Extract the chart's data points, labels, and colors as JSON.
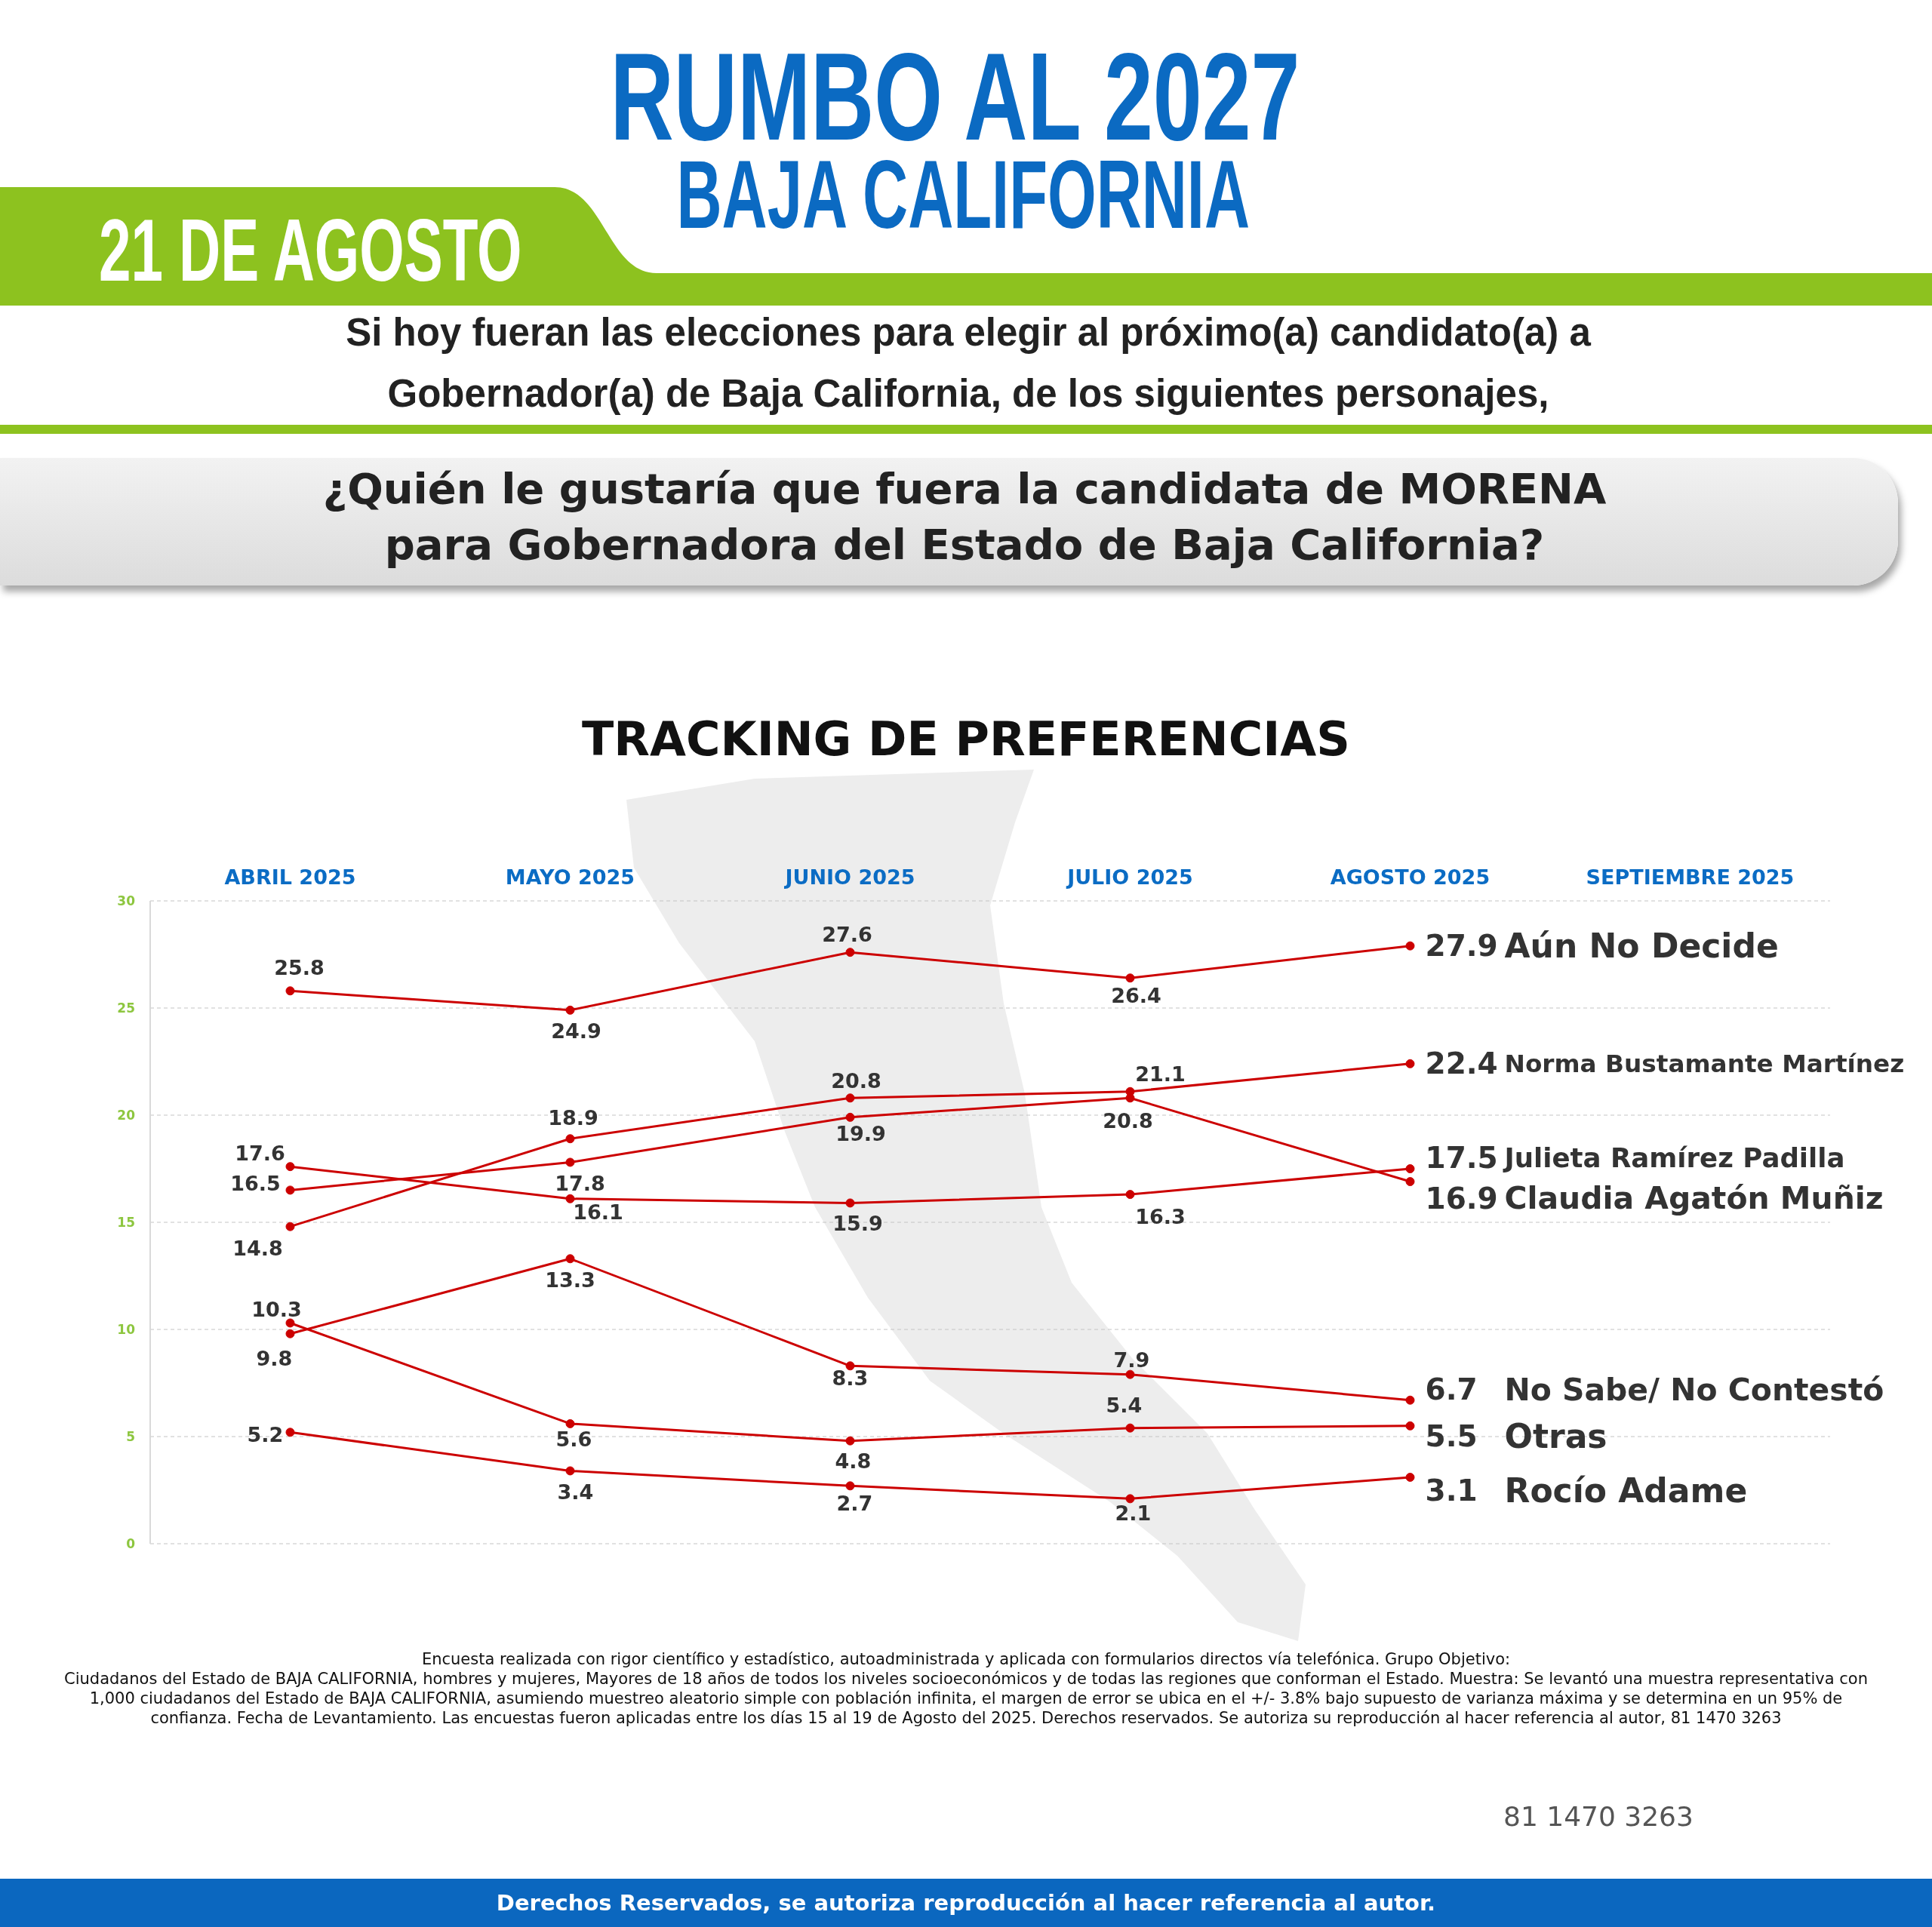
{
  "chart_data": {
    "type": "line",
    "title": "RUMBO AL 2027",
    "subtitle": "BAJA CALIFORNIA",
    "annotations": [
      "21 DE AGOSTO",
      "Si hoy fueran las elecciones para elegir al próximo(a) candidato(a) a Gobernador(a) de Baja California, de los siguientes personajes,",
      "¿Quién le gustaría que fuera la candidata de MORENA para Gobernadora del Estado de Baja California?",
      "TRACKING DE PREFERENCIAS",
      "Encuesta realizada con rigor científico y estadístico, autoadministrada y aplicada con formularios directos vía telefónica. Grupo Objetivo:",
      "Ciudadanos del Estado de BAJA CALIFORNIA, hombres y mujeres, Mayores de 18 años de todos los niveles socioeconómicos y de todas las regiones que conforman el Estado. Muestra: Se levantó una muestra representativa con 1,000 ciudadanos del Estado de BAJA CALIFORNIA, asumiendo muestreo aleatorio simple con población infinita, el margen de error se ubica en el +/- 3.8% bajo supuesto de varianza máxima y se determina en un 95% de confianza. Fecha de Levantamiento. Las encuestas fueron aplicadas entre los días 15 al 19 de Agosto del 2025. Derechos reservados. Se autoriza su reproducción al hacer referencia al autor, 81 1470 3263",
      "81 1470 3263",
      "Derechos Reservados, se autoriza reproducción al hacer referencia al autor."
    ],
    "categories": [
      "ABRIL 2025",
      "MAYO 2025",
      "JUNIO 2025",
      "JULIO 2025",
      "AGOSTO 2025",
      "SEPTIEMBRE 2025"
    ],
    "series": [
      {
        "name": "Aún No Decide",
        "color": "#cc0000",
        "values": [
          25.8,
          24.9,
          27.6,
          26.4,
          27.9,
          null
        ]
      },
      {
        "name": "Norma Bustamante Martínez",
        "color": "#cc0000",
        "values": [
          14.8,
          18.9,
          20.8,
          21.1,
          22.4,
          null
        ]
      },
      {
        "name": "Julieta Ramírez Padilla",
        "color": "#cc0000",
        "values": [
          17.6,
          16.1,
          15.9,
          16.3,
          17.5,
          null
        ]
      },
      {
        "name": "Claudia Agatón Muñiz",
        "color": "#cc0000",
        "values": [
          16.5,
          17.8,
          19.9,
          20.8,
          16.9,
          null
        ]
      },
      {
        "name": "No Sabe/ No Contestó",
        "color": "#cc0000",
        "values": [
          9.8,
          13.3,
          8.3,
          7.9,
          6.7,
          null
        ]
      },
      {
        "name": "Otras",
        "color": "#cc0000",
        "values": [
          10.3,
          5.6,
          4.8,
          5.4,
          5.5,
          null
        ]
      },
      {
        "name": "Rocío Adame",
        "color": "#cc0000",
        "values": [
          5.2,
          3.4,
          2.7,
          2.1,
          3.1,
          null
        ]
      }
    ],
    "ylim": [
      0,
      30
    ],
    "yticks": [
      0,
      5,
      10,
      15,
      20,
      25,
      30
    ],
    "grid": "y",
    "marker": "circle",
    "line_style": "solid",
    "data_labels": true
  }
}
